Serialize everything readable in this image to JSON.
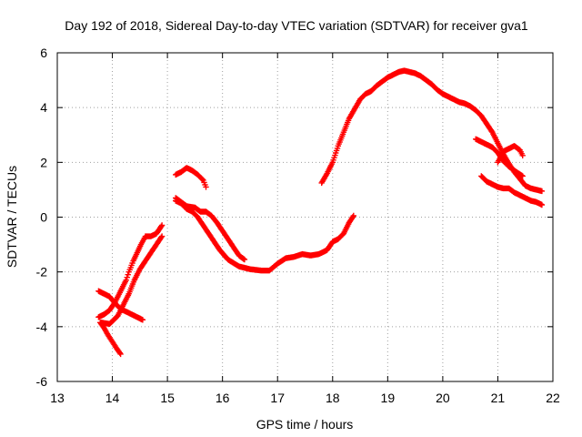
{
  "chart_data": {
    "type": "scatter",
    "title": "Day 192 of 2018, Sidereal Day-to-day VTEC variation (SDTVAR) for receiver gva1",
    "xlabel": "GPS time / hours",
    "ylabel": "SDTVAR / TECUs",
    "xlim": [
      13,
      22
    ],
    "ylim": [
      -6,
      6
    ],
    "xticks": [
      "13",
      "14",
      "15",
      "16",
      "17",
      "18",
      "19",
      "20",
      "21",
      "22"
    ],
    "yticks": [
      "-6",
      "-4",
      "-2",
      "0",
      "2",
      "4",
      "6"
    ],
    "grid": true,
    "legend": "none",
    "marker": "plus",
    "color": "#ff0000",
    "series": [
      {
        "x": [
          13.75,
          13.85,
          13.95,
          14.05,
          14.15,
          14.25,
          14.35,
          14.45,
          14.55
        ],
        "y": [
          -2.7,
          -2.8,
          -2.9,
          -3.15,
          -3.35,
          -3.45,
          -3.55,
          -3.65,
          -3.75
        ]
      },
      {
        "x": [
          13.78,
          13.85,
          13.92,
          14.0,
          14.08,
          14.15
        ],
        "y": [
          -3.85,
          -4.05,
          -4.3,
          -4.55,
          -4.8,
          -5.0
        ]
      },
      {
        "x": [
          13.75,
          13.85,
          13.95,
          14.05,
          14.15,
          14.25,
          14.3,
          14.38,
          14.45,
          14.52,
          14.6,
          14.7,
          14.8,
          14.9
        ],
        "y": [
          -3.65,
          -3.55,
          -3.4,
          -3.1,
          -2.7,
          -2.3,
          -2.0,
          -1.6,
          -1.3,
          -1.0,
          -0.7,
          -0.7,
          -0.6,
          -0.3
        ]
      },
      {
        "x": [
          13.8,
          13.95,
          14.1,
          14.2,
          14.3,
          14.4,
          14.5,
          14.6,
          14.7,
          14.8,
          14.9
        ],
        "y": [
          -3.85,
          -3.9,
          -3.6,
          -3.2,
          -2.8,
          -2.3,
          -1.9,
          -1.6,
          -1.3,
          -1.0,
          -0.7
        ]
      },
      {
        "x": [
          15.15,
          15.25,
          15.35,
          15.45,
          15.55,
          15.65,
          15.7
        ],
        "y": [
          1.55,
          1.65,
          1.8,
          1.7,
          1.55,
          1.35,
          1.1
        ]
      },
      {
        "x": [
          15.15,
          15.25,
          15.35,
          15.5,
          15.6,
          15.7,
          15.8,
          15.9,
          16.0,
          16.1,
          16.2,
          16.3,
          16.4
        ],
        "y": [
          0.7,
          0.55,
          0.4,
          0.35,
          0.2,
          0.2,
          0.05,
          -0.2,
          -0.5,
          -0.8,
          -1.1,
          -1.4,
          -1.55
        ]
      },
      {
        "x": [
          15.15,
          15.25,
          15.35,
          15.45,
          15.55,
          15.65,
          15.75,
          15.85,
          15.95,
          16.1,
          16.3,
          16.5,
          16.7,
          16.85,
          17.0,
          17.15,
          17.3,
          17.45,
          17.6,
          17.75,
          17.9,
          18.0,
          18.1,
          18.2,
          18.3,
          18.38
        ],
        "y": [
          0.6,
          0.5,
          0.3,
          0.2,
          0.0,
          -0.3,
          -0.6,
          -0.9,
          -1.2,
          -1.55,
          -1.8,
          -1.9,
          -1.95,
          -1.95,
          -1.7,
          -1.5,
          -1.45,
          -1.35,
          -1.4,
          -1.35,
          -1.2,
          -0.9,
          -0.8,
          -0.6,
          -0.2,
          0.05
        ]
      },
      {
        "x": [
          17.8,
          17.9,
          18.0,
          18.1,
          18.2,
          18.3,
          18.4,
          18.5,
          18.6,
          18.7,
          18.8,
          18.9,
          19.0,
          19.1,
          19.2,
          19.3,
          19.4,
          19.5,
          19.6,
          19.7,
          19.8,
          19.9,
          20.0,
          20.1,
          20.2,
          20.3,
          20.4,
          20.5,
          20.6,
          20.7,
          20.8,
          20.9,
          21.0,
          21.1,
          21.2,
          21.3,
          21.4,
          21.5,
          21.6,
          21.7,
          21.8
        ],
        "y": [
          1.25,
          1.6,
          2.0,
          2.6,
          3.1,
          3.6,
          3.95,
          4.3,
          4.5,
          4.6,
          4.8,
          4.95,
          5.1,
          5.2,
          5.3,
          5.35,
          5.3,
          5.25,
          5.15,
          5.0,
          4.85,
          4.65,
          4.5,
          4.4,
          4.3,
          4.2,
          4.15,
          4.05,
          3.9,
          3.7,
          3.4,
          3.1,
          2.7,
          2.3,
          1.95,
          1.65,
          1.4,
          1.15,
          1.05,
          1.0,
          0.95
        ]
      },
      {
        "x": [
          20.6,
          20.7,
          20.8,
          20.9,
          21.0,
          21.1,
          21.2,
          21.3,
          21.45
        ],
        "y": [
          2.85,
          2.75,
          2.65,
          2.55,
          2.35,
          2.05,
          1.85,
          1.7,
          1.5
        ]
      },
      {
        "x": [
          20.7,
          20.8,
          20.9,
          21.0,
          21.1,
          21.2,
          21.3,
          21.4,
          21.5,
          21.6,
          21.7,
          21.8
        ],
        "y": [
          1.5,
          1.3,
          1.2,
          1.1,
          1.05,
          1.05,
          0.9,
          0.8,
          0.7,
          0.6,
          0.55,
          0.45
        ]
      },
      {
        "x": [
          21.0,
          21.1,
          21.2,
          21.3,
          21.4,
          21.45
        ],
        "y": [
          2.0,
          2.4,
          2.5,
          2.6,
          2.45,
          2.25
        ]
      }
    ]
  }
}
